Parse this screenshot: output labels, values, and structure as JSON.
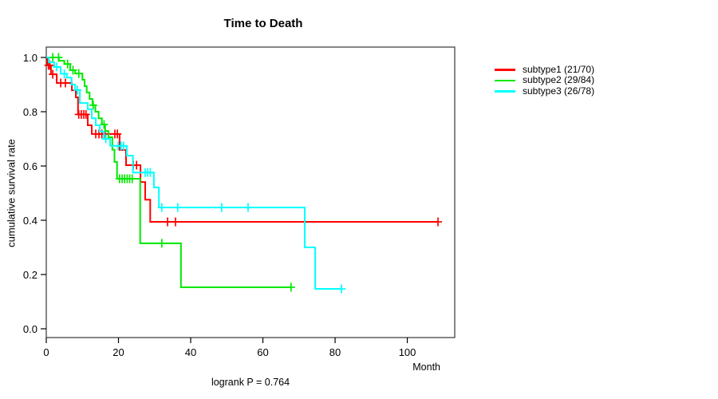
{
  "title": "Time to Death",
  "footnote": "logrank P = 0.764",
  "x_axis": {
    "title": "Month",
    "tick_labels": [
      "0",
      "20",
      "40",
      "60",
      "80",
      "100"
    ]
  },
  "y_axis": {
    "title": "cumulative survival rate",
    "tick_labels": [
      "1.0",
      "0.8",
      "0.6",
      "0.4",
      "0.2",
      "0.0"
    ]
  },
  "chart_data": {
    "type": "line",
    "variant": "kaplan-meier-survival-step",
    "title": "Time to Death",
    "xlabel": "Month",
    "ylabel": "cumulative survival rate",
    "xlim": [
      0,
      113
    ],
    "ylim": [
      0.0,
      1.0
    ],
    "x_ticks": [
      0,
      20,
      40,
      60,
      80,
      100
    ],
    "y_ticks": [
      1.0,
      0.8,
      0.6,
      0.4,
      0.2,
      0.0
    ],
    "grid": false,
    "legend_position": "right-outside",
    "logrank_p": 0.764,
    "series": [
      {
        "name": "subtype1 (21/70)",
        "label": "subtype1",
        "events": "21/70",
        "color": "#FF0000",
        "steps": [
          [
            0,
            1.0
          ],
          [
            0.3,
            0.971
          ],
          [
            1.3,
            0.938
          ],
          [
            2.9,
            0.906
          ],
          [
            7.1,
            0.879
          ],
          [
            8.2,
            0.853
          ],
          [
            8.8,
            0.79
          ],
          [
            11.5,
            0.75
          ],
          [
            12.6,
            0.718
          ],
          [
            20.3,
            0.659
          ],
          [
            22.1,
            0.603
          ],
          [
            26.1,
            0.541
          ],
          [
            27.4,
            0.476
          ],
          [
            28.8,
            0.394
          ],
          [
            108.5,
            0.394
          ]
        ],
        "censors": [
          [
            0.6,
            0.971
          ],
          [
            1.0,
            0.971
          ],
          [
            1.8,
            0.938
          ],
          [
            4.0,
            0.906
          ],
          [
            5.3,
            0.906
          ],
          [
            9.0,
            0.79
          ],
          [
            9.7,
            0.79
          ],
          [
            10.4,
            0.79
          ],
          [
            11.0,
            0.79
          ],
          [
            13.7,
            0.718
          ],
          [
            14.6,
            0.718
          ],
          [
            15.4,
            0.718
          ],
          [
            16.3,
            0.718
          ],
          [
            19.0,
            0.718
          ],
          [
            19.7,
            0.718
          ],
          [
            24.1,
            0.603
          ],
          [
            25.0,
            0.603
          ],
          [
            33.6,
            0.394
          ],
          [
            35.8,
            0.394
          ],
          [
            108.5,
            0.394
          ]
        ]
      },
      {
        "name": "subtype2 (29/84)",
        "label": "subtype2",
        "events": "29/84",
        "color": "#00E800",
        "steps": [
          [
            0,
            1.0
          ],
          [
            3.5,
            0.988
          ],
          [
            5.0,
            0.976
          ],
          [
            6.6,
            0.953
          ],
          [
            8.0,
            0.941
          ],
          [
            10.0,
            0.918
          ],
          [
            10.6,
            0.894
          ],
          [
            11.2,
            0.871
          ],
          [
            12.0,
            0.847
          ],
          [
            12.8,
            0.824
          ],
          [
            13.6,
            0.8
          ],
          [
            14.5,
            0.776
          ],
          [
            15.4,
            0.753
          ],
          [
            16.3,
            0.729
          ],
          [
            17.2,
            0.706
          ],
          [
            18.3,
            0.66
          ],
          [
            18.9,
            0.615
          ],
          [
            19.6,
            0.553
          ],
          [
            26.0,
            0.315
          ],
          [
            37.3,
            0.153
          ],
          [
            67.8,
            0.153
          ]
        ],
        "censors": [
          [
            1.8,
            1.0
          ],
          [
            3.4,
            1.0
          ],
          [
            5.9,
            0.976
          ],
          [
            7.4,
            0.953
          ],
          [
            9.0,
            0.941
          ],
          [
            13.0,
            0.824
          ],
          [
            16.0,
            0.753
          ],
          [
            20.3,
            0.553
          ],
          [
            21.0,
            0.553
          ],
          [
            21.7,
            0.553
          ],
          [
            22.4,
            0.553
          ],
          [
            23.1,
            0.553
          ],
          [
            23.8,
            0.553
          ],
          [
            32.0,
            0.315
          ],
          [
            67.8,
            0.153
          ]
        ]
      },
      {
        "name": "subtype3 (26/78)",
        "label": "subtype3",
        "events": "26/78",
        "color": "#00FFFF",
        "steps": [
          [
            0,
            1.0
          ],
          [
            0.7,
            0.982
          ],
          [
            2.2,
            0.965
          ],
          [
            4.0,
            0.94
          ],
          [
            5.7,
            0.926
          ],
          [
            7.0,
            0.9
          ],
          [
            8.0,
            0.88
          ],
          [
            9.3,
            0.832
          ],
          [
            11.5,
            0.809
          ],
          [
            12.6,
            0.776
          ],
          [
            13.7,
            0.75
          ],
          [
            14.8,
            0.727
          ],
          [
            16.0,
            0.7
          ],
          [
            17.7,
            0.674
          ],
          [
            22.3,
            0.638
          ],
          [
            24.0,
            0.576
          ],
          [
            29.8,
            0.521
          ],
          [
            31.2,
            0.447
          ],
          [
            71.6,
            0.3
          ],
          [
            74.5,
            0.147
          ],
          [
            81.8,
            0.147
          ]
        ],
        "censors": [
          [
            2.9,
            0.965
          ],
          [
            5.0,
            0.94
          ],
          [
            8.6,
            0.88
          ],
          [
            16.5,
            0.7
          ],
          [
            19.9,
            0.674
          ],
          [
            20.7,
            0.674
          ],
          [
            21.4,
            0.674
          ],
          [
            27.4,
            0.576
          ],
          [
            28.1,
            0.576
          ],
          [
            28.8,
            0.576
          ],
          [
            32.0,
            0.447
          ],
          [
            36.4,
            0.447
          ],
          [
            48.6,
            0.447
          ],
          [
            55.9,
            0.447
          ],
          [
            81.8,
            0.147
          ]
        ]
      }
    ]
  }
}
